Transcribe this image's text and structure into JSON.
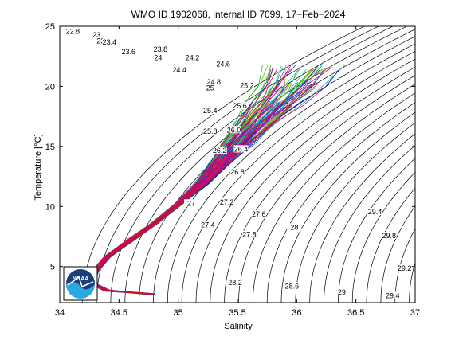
{
  "chart_data": {
    "type": "line",
    "title": "WMO ID 1902068, internal ID 7099, 17−Feb−2024",
    "xlabel": "Salinity",
    "ylabel": "Temperature [°C]",
    "xlim": [
      34,
      37
    ],
    "ylim": [
      2,
      25
    ],
    "xticks": [
      "34",
      "34.5",
      "35",
      "35.5",
      "36",
      "36.5",
      "37"
    ],
    "yticks": [
      "5",
      "10",
      "15",
      "20",
      "25"
    ],
    "grid": false,
    "legend": "none",
    "density_contours": {
      "labels": [
        {
          "text": "22.8",
          "s": 34.11,
          "t": 24.5
        },
        {
          "text": "23",
          "s": 34.31,
          "t": 24.2
        },
        {
          "text": "23.2",
          "s": 34.37,
          "t": 23.7
        },
        {
          "text": "23.4",
          "s": 34.42,
          "t": 23.6
        },
        {
          "text": "23.6",
          "s": 34.58,
          "t": 22.8
        },
        {
          "text": "23.8",
          "s": 34.85,
          "t": 23.0
        },
        {
          "text": "24",
          "s": 34.83,
          "t": 22.3
        },
        {
          "text": "24.2",
          "s": 35.12,
          "t": 22.3
        },
        {
          "text": "24.4",
          "s": 35.01,
          "t": 21.3
        },
        {
          "text": "24.6",
          "s": 35.38,
          "t": 21.8
        },
        {
          "text": "24.8",
          "s": 35.3,
          "t": 20.3
        },
        {
          "text": "25",
          "s": 35.27,
          "t": 19.8
        },
        {
          "text": "25.2",
          "s": 35.58,
          "t": 20.0
        },
        {
          "text": "25.4",
          "s": 35.27,
          "t": 17.9
        },
        {
          "text": "25.6",
          "s": 35.52,
          "t": 18.3
        },
        {
          "text": "25.8",
          "s": 35.27,
          "t": 16.2
        },
        {
          "text": "26.0",
          "s": 35.47,
          "t": 16.3
        },
        {
          "text": "26.2",
          "s": 35.35,
          "t": 14.6
        },
        {
          "text": "26.4",
          "s": 35.53,
          "t": 14.7
        },
        {
          "text": "26.8",
          "s": 35.5,
          "t": 12.8
        },
        {
          "text": "27",
          "s": 35.11,
          "t": 10.2
        },
        {
          "text": "27.2",
          "s": 35.41,
          "t": 10.3
        },
        {
          "text": "27.4",
          "s": 35.25,
          "t": 8.4
        },
        {
          "text": "27.6",
          "s": 35.68,
          "t": 9.3
        },
        {
          "text": "27.8",
          "s": 35.6,
          "t": 7.6
        },
        {
          "text": "28",
          "s": 35.98,
          "t": 8.2
        },
        {
          "text": "28.2",
          "s": 35.48,
          "t": 3.6
        },
        {
          "text": "28.6",
          "s": 35.96,
          "t": 3.3
        },
        {
          "text": "29",
          "s": 36.38,
          "t": 2.8
        },
        {
          "text": "29.4",
          "s": 36.66,
          "t": 9.5
        },
        {
          "text": "29.8",
          "s": 36.78,
          "t": 7.5
        },
        {
          "text": "29.2",
          "s": 36.91,
          "t": 4.8
        },
        {
          "text": "29.4",
          "s": 36.81,
          "t": 2.5
        }
      ]
    },
    "series_summary": {
      "description": "many overlapping float profiles (rainbow colors)",
      "mean_path": [
        {
          "s": 34.78,
          "t": 2.7
        },
        {
          "s": 34.4,
          "t": 3.0
        },
        {
          "s": 34.27,
          "t": 3.6
        },
        {
          "s": 34.3,
          "t": 4.6
        },
        {
          "s": 34.4,
          "t": 5.8
        },
        {
          "s": 34.6,
          "t": 7.2
        },
        {
          "s": 34.8,
          "t": 8.6
        },
        {
          "s": 35.0,
          "t": 10.2
        },
        {
          "s": 35.2,
          "t": 11.9
        },
        {
          "s": 35.35,
          "t": 13.6
        },
        {
          "s": 35.5,
          "t": 15.3
        },
        {
          "s": 35.65,
          "t": 17.0
        },
        {
          "s": 35.8,
          "t": 18.6
        },
        {
          "s": 35.95,
          "t": 20.2
        },
        {
          "s": 36.05,
          "t": 21.6
        }
      ],
      "salinity_range": [
        34.25,
        36.35
      ],
      "temperature_range": [
        2.6,
        24.5
      ],
      "profile_count_est": 140
    }
  },
  "logo": {
    "text": "NOAA",
    "colors": {
      "dark": "#1a3f7a",
      "light": "#29a9e0"
    }
  }
}
